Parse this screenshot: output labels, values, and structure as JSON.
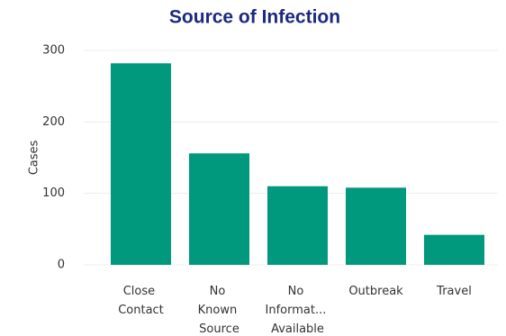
{
  "chart_data": {
    "type": "bar",
    "title": "Source of Infection",
    "y_label": "Cases",
    "categories": [
      "Close Contact",
      "No Known Source",
      "No Informat... Available",
      "Outbreak",
      "Travel"
    ],
    "values": [
      282,
      156,
      110,
      108,
      42
    ],
    "color": "#00997d",
    "ylim": [
      0,
      300
    ],
    "yticks": [
      0,
      100,
      200,
      300
    ],
    "grid": true
  }
}
